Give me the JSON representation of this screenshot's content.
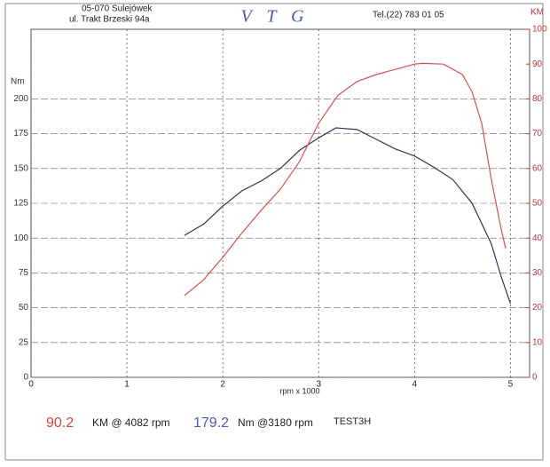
{
  "header": {
    "address1": "05-070 Sulejówek",
    "address2": "ul. Trakt Brzeski 94a",
    "logo": "V T G",
    "phone": "Tel.(22) 783 01 05"
  },
  "chart_data": {
    "type": "line",
    "y_label": "Nm",
    "y2_label": "KM",
    "x_label": "rpm x 1000",
    "xlim": [
      0,
      5.2
    ],
    "xticks": [
      0,
      1,
      2,
      3,
      4,
      5
    ],
    "ylim": [
      0,
      250
    ],
    "yticks": [
      0,
      25,
      50,
      75,
      100,
      125,
      150,
      175,
      200
    ],
    "y2lim": [
      0,
      100
    ],
    "y2ticks": [
      0,
      10,
      20,
      30,
      40,
      50,
      60,
      70,
      80,
      90,
      100
    ],
    "grid": true,
    "series": [
      {
        "name": "Nm",
        "color": "#2e3550",
        "axis": "y",
        "x": [
          1.6,
          1.8,
          2.0,
          2.2,
          2.4,
          2.6,
          2.8,
          3.0,
          3.18,
          3.4,
          3.6,
          3.8,
          4.0,
          4.2,
          4.4,
          4.6,
          4.8,
          4.9,
          5.0
        ],
        "values": [
          102,
          110,
          123,
          134,
          141,
          150,
          163,
          172,
          179.2,
          178,
          171,
          164,
          159,
          151,
          142,
          125,
          96,
          73,
          53
        ]
      },
      {
        "name": "KM",
        "color": "#d0505a",
        "axis": "y2",
        "x": [
          1.6,
          1.8,
          2.0,
          2.2,
          2.4,
          2.6,
          2.8,
          3.0,
          3.2,
          3.4,
          3.6,
          3.8,
          4.0,
          4.082,
          4.3,
          4.5,
          4.6,
          4.7,
          4.8,
          4.9,
          4.95
        ],
        "values": [
          23.5,
          28,
          34.5,
          41.5,
          48,
          54,
          62,
          73,
          81,
          85,
          87,
          88.5,
          90,
          90.2,
          90,
          87,
          82,
          73,
          57,
          43,
          37
        ]
      }
    ]
  },
  "readout": {
    "power": 90.2,
    "power_text": "KM @ 4082 rpm",
    "torque": 179.2,
    "torque_text": "Nm @3180 rpm",
    "test": "TEST3H"
  }
}
